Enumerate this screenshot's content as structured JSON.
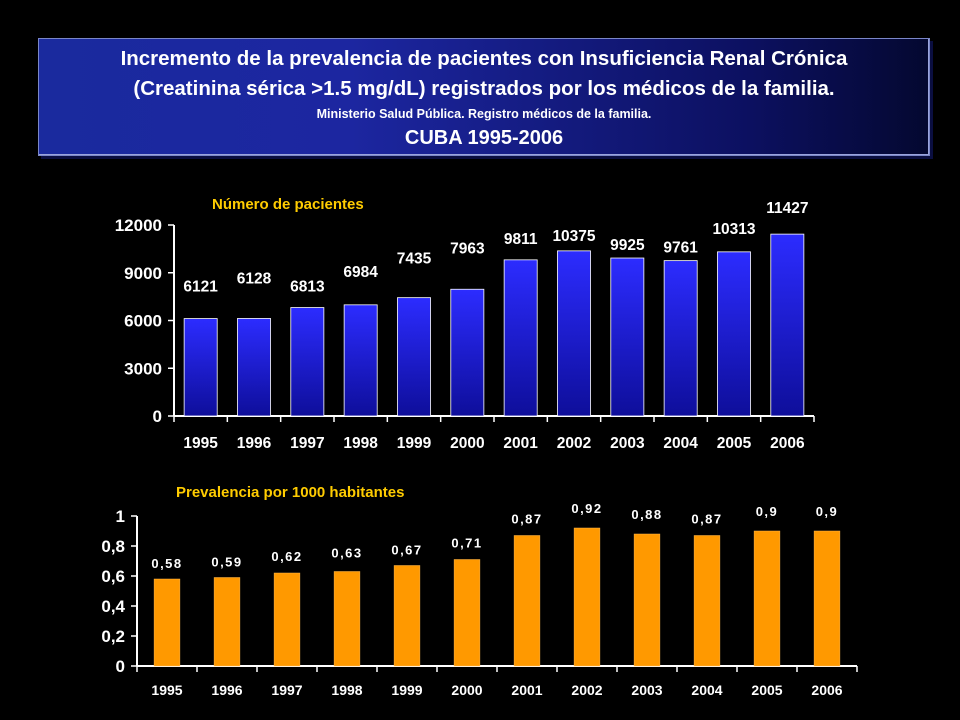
{
  "header": {
    "line1": "Incremento de la prevalencia de pacientes con Insuficiencia Renal Crónica",
    "line2": "(Creatinina sérica >1.5 mg/dL) registrados por los médicos de la familia.",
    "source": "Ministerio Salud Pública. Registro médicos de la familia.",
    "subtitle": "CUBA 1995-2006"
  },
  "colors": {
    "background": "#000000",
    "bar1": "#1a1ad8",
    "bar2": "#ff9900",
    "chart1_title": "#ffcc00",
    "chart2_title": "#ffcc00",
    "text": "#ffffff"
  },
  "chart_data": [
    {
      "type": "bar",
      "title": "Número de pacientes",
      "categories": [
        "1995",
        "1996",
        "1997",
        "1998",
        "1999",
        "2000",
        "2001",
        "2002",
        "2003",
        "2004",
        "2005",
        "2006"
      ],
      "values": [
        6121,
        6128,
        6813,
        6984,
        7435,
        7963,
        9811,
        10375,
        9925,
        9761,
        10313,
        11427
      ],
      "data_labels": [
        "6121",
        "6128",
        "6813",
        "6984",
        "7435",
        "7963",
        "9811",
        "10375",
        "9925",
        "9761",
        "10313",
        "11427"
      ],
      "yticks": [
        "0",
        "3000",
        "6000",
        "9000",
        "12000"
      ],
      "ylim": [
        0,
        12000
      ]
    },
    {
      "type": "bar",
      "title": "Prevalencia por 1000 habitantes",
      "categories": [
        "1995",
        "1996",
        "1997",
        "1998",
        "1999",
        "2000",
        "2001",
        "2002",
        "2003",
        "2004",
        "2005",
        "2006"
      ],
      "values": [
        0.58,
        0.59,
        0.62,
        0.63,
        0.67,
        0.71,
        0.87,
        0.92,
        0.88,
        0.87,
        0.9,
        0.9
      ],
      "data_labels": [
        "0,58",
        "0,59",
        "0,62",
        "0,63",
        "0,67",
        "0,71",
        "0,87",
        "0,92",
        "0,88",
        "0,87",
        "0,9",
        "0,9"
      ],
      "yticks": [
        "0",
        "0,2",
        "0,4",
        "0,6",
        "0,8",
        "1"
      ],
      "ylim": [
        0,
        1
      ]
    }
  ]
}
